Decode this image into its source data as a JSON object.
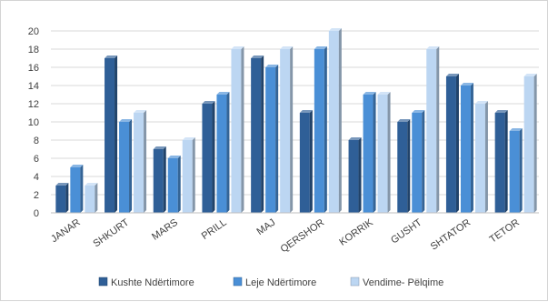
{
  "chart_data": {
    "type": "bar",
    "title": "",
    "xlabel": "",
    "ylabel": "",
    "categories": [
      "JANAR",
      "SHKURT",
      "MARS",
      "PRILL",
      "MAJ",
      "QERSHOR",
      "KORRIK",
      "GUSHT",
      "SHTATOR",
      "TETOR"
    ],
    "ylim": [
      0,
      20
    ],
    "yticks": [
      "0",
      "2",
      "4",
      "6",
      "8",
      "10",
      "12",
      "14",
      "16",
      "18",
      "20"
    ],
    "grid": true,
    "legend_position": "bottom",
    "series": [
      {
        "name": "Kushte Ndërtimore",
        "values": [
          3,
          17,
          7,
          12,
          17,
          11,
          8,
          10,
          15,
          11
        ],
        "color": "#2f5f97"
      },
      {
        "name": "Leje Ndërtimore",
        "values": [
          5,
          10,
          6,
          13,
          16,
          18,
          13,
          11,
          14,
          9
        ],
        "color": "#4a8fd6"
      },
      {
        "name": "Vendime- Pëlqime",
        "values": [
          3,
          11,
          8,
          18,
          18,
          20,
          13,
          18,
          12,
          15
        ],
        "color": "#bcd6f2"
      }
    ]
  }
}
